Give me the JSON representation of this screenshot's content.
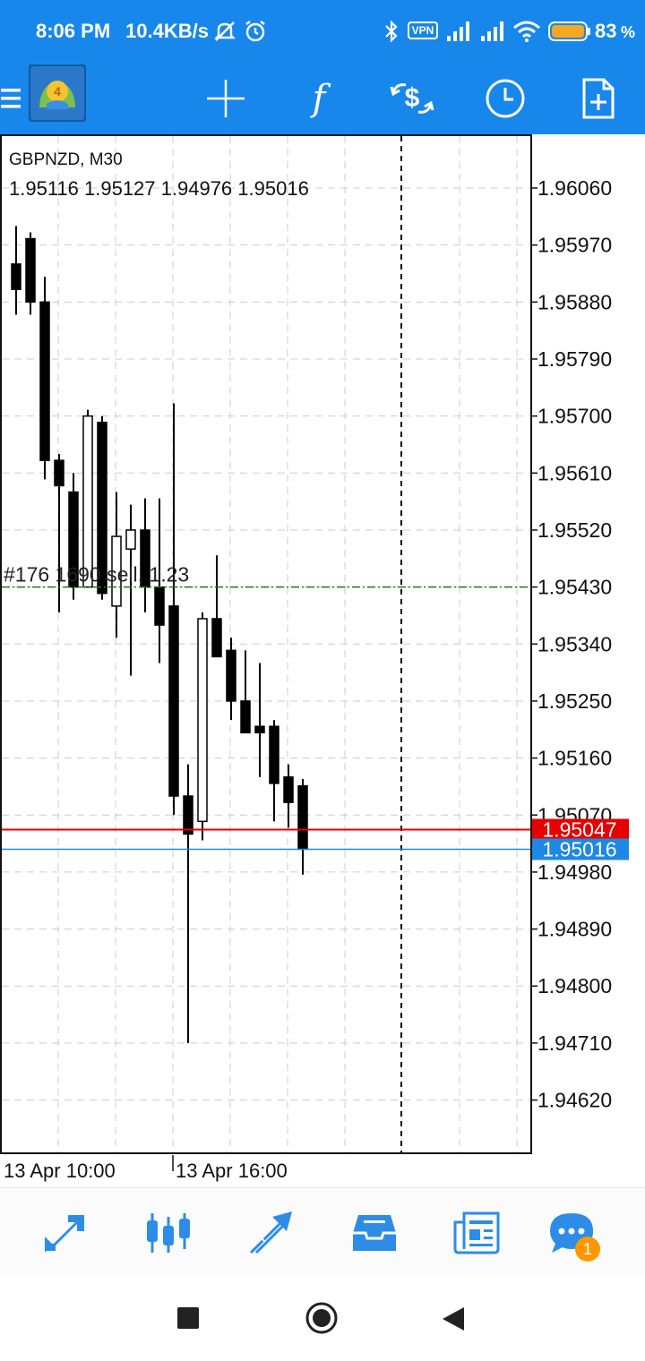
{
  "status_bar": {
    "time": "8:06 PM",
    "speed": "10.4KB/s",
    "vpn": "VPN",
    "battery_pct": "83",
    "battery_unit": "%"
  },
  "toolbar": {
    "icons": [
      "menu-icon",
      "metatrader-logo",
      "crosshair-icon",
      "function-icon",
      "objects-icon",
      "timeframe-icon",
      "new-order-icon"
    ]
  },
  "chart": {
    "symbol_label": "GBPNZD, M30",
    "ohlc_label": "1.95116 1.95127 1.94976 1.95016",
    "order_label": "#176 1690 sell, 1.23",
    "price_ticks": [
      "1.96060",
      "1.95970",
      "1.95880",
      "1.95790",
      "1.95700",
      "1.95610",
      "1.95520",
      "1.95430",
      "1.95340",
      "1.95250",
      "1.95160",
      "1.95070",
      "1.94980",
      "1.94890",
      "1.94800",
      "1.94710",
      "1.94620"
    ],
    "time_labels": [
      "13 Apr 10:00",
      "13 Apr 16:00"
    ],
    "ask_price": "1.95047",
    "bid_price": "1.95016",
    "colors": {
      "ask_line": "#e60000",
      "bid_line": "#1e88e5",
      "order_line": "#1a7a1a",
      "grid": "#c8ccd2"
    }
  },
  "chart_data": {
    "type": "candlestick",
    "symbol": "GBPNZD",
    "timeframe": "M30",
    "ylim": [
      1.9458,
      1.961
    ],
    "candles": [
      {
        "o": 1.9594,
        "h": 1.96,
        "l": 1.9586,
        "c": 1.959
      },
      {
        "o": 1.9598,
        "h": 1.9599,
        "l": 1.9586,
        "c": 1.9588
      },
      {
        "o": 1.9588,
        "h": 1.9592,
        "l": 1.956,
        "c": 1.9563
      },
      {
        "o": 1.9563,
        "h": 1.9564,
        "l": 1.9539,
        "c": 1.9559
      },
      {
        "o": 1.9558,
        "h": 1.9561,
        "l": 1.9541,
        "c": 1.9543
      },
      {
        "o": 1.9543,
        "h": 1.9571,
        "l": 1.9543,
        "c": 1.957
      },
      {
        "o": 1.9569,
        "h": 1.957,
        "l": 1.9541,
        "c": 1.9542
      },
      {
        "o": 1.954,
        "h": 1.9558,
        "l": 1.9535,
        "c": 1.9551
      },
      {
        "o": 1.9549,
        "h": 1.9556,
        "l": 1.9529,
        "c": 1.9552
      },
      {
        "o": 1.9552,
        "h": 1.9557,
        "l": 1.9539,
        "c": 1.9543
      },
      {
        "o": 1.9543,
        "h": 1.9557,
        "l": 1.9531,
        "c": 1.9537
      },
      {
        "o": 1.954,
        "h": 1.9572,
        "l": 1.9507,
        "c": 1.951
      },
      {
        "o": 1.951,
        "h": 1.9515,
        "l": 1.9471,
        "c": 1.9504
      },
      {
        "o": 1.9506,
        "h": 1.9539,
        "l": 1.9503,
        "c": 1.9538
      },
      {
        "o": 1.9538,
        "h": 1.9548,
        "l": 1.9532,
        "c": 1.9532
      },
      {
        "o": 1.9533,
        "h": 1.9535,
        "l": 1.9522,
        "c": 1.9525
      },
      {
        "o": 1.9525,
        "h": 1.9533,
        "l": 1.952,
        "c": 1.952
      },
      {
        "o": 1.9521,
        "h": 1.9531,
        "l": 1.9513,
        "c": 1.952
      },
      {
        "o": 1.9521,
        "h": 1.9522,
        "l": 1.9506,
        "c": 1.9512
      },
      {
        "o": 1.9513,
        "h": 1.9515,
        "l": 1.9505,
        "c": 1.9509
      },
      {
        "o": 1.95116,
        "h": 1.95127,
        "l": 1.94976,
        "c": 1.95016
      }
    ],
    "lines": {
      "ask": 1.95047,
      "bid": 1.95016,
      "order": 1.9543
    }
  },
  "bottom_nav": {
    "items": [
      "quotes-icon",
      "chart-icon",
      "trade-icon",
      "history-icon",
      "news-icon",
      "chat-icon"
    ],
    "chat_badge": "1"
  }
}
